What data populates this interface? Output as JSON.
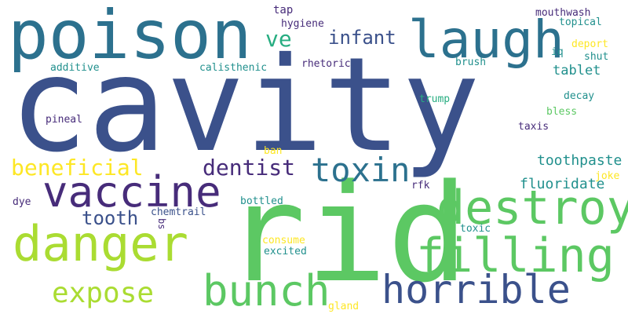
{
  "background": "#ffffff",
  "palette": {
    "dark_purple": "#472c7a",
    "indigo": "#3b518b",
    "steel_blue": "#2c718e",
    "teal": "#21908d",
    "green": "#27ad81",
    "lime": "#5cc863",
    "light_lime": "#aadc32",
    "yellow": "#fde725"
  },
  "words": [
    {
      "text": "cavity",
      "color": "#3b518b"
    },
    {
      "text": "rid",
      "color": "#5cc863"
    },
    {
      "text": "poison",
      "color": "#2c718e"
    },
    {
      "text": "laugh",
      "color": "#2c718e"
    },
    {
      "text": "vaccine",
      "color": "#472c7a"
    },
    {
      "text": "danger",
      "color": "#aadc32"
    },
    {
      "text": "destroy",
      "color": "#5cc863"
    },
    {
      "text": "filling",
      "color": "#5cc863"
    },
    {
      "text": "horrible",
      "color": "#3b518b"
    },
    {
      "text": "bunch",
      "color": "#5cc863"
    },
    {
      "text": "toxin",
      "color": "#2c718e"
    },
    {
      "text": "expose",
      "color": "#aadc32"
    },
    {
      "text": "beneficial",
      "color": "#fde725"
    },
    {
      "text": "dentist",
      "color": "#472c7a"
    },
    {
      "text": "infant",
      "color": "#3b518b"
    },
    {
      "text": "ve",
      "color": "#27ad81"
    },
    {
      "text": "tooth",
      "color": "#3b518b"
    },
    {
      "text": "toothpaste",
      "color": "#21908d"
    },
    {
      "text": "fluoridate",
      "color": "#21908d"
    },
    {
      "text": "tablet",
      "color": "#21908d"
    },
    {
      "text": "tap",
      "color": "#472c7a"
    },
    {
      "text": "hygiene",
      "color": "#472c7a"
    },
    {
      "text": "mouthwash",
      "color": "#472c7a"
    },
    {
      "text": "topical",
      "color": "#21908d"
    },
    {
      "text": "deport",
      "color": "#fde725"
    },
    {
      "text": "iq",
      "color": "#21908d"
    },
    {
      "text": "shut",
      "color": "#21908d"
    },
    {
      "text": "rhetoric",
      "color": "#472c7a"
    },
    {
      "text": "brush",
      "color": "#21908d"
    },
    {
      "text": "additive",
      "color": "#21908d"
    },
    {
      "text": "calisthenic",
      "color": "#21908d"
    },
    {
      "text": "decay",
      "color": "#21908d"
    },
    {
      "text": "trump",
      "color": "#27ad81"
    },
    {
      "text": "bless",
      "color": "#5cc863"
    },
    {
      "text": "pineal",
      "color": "#472c7a"
    },
    {
      "text": "taxis",
      "color": "#472c7a"
    },
    {
      "text": "ban",
      "color": "#fde725"
    },
    {
      "text": "joke",
      "color": "#fde725"
    },
    {
      "text": "rfk",
      "color": "#472c7a"
    },
    {
      "text": "dye",
      "color": "#472c7a"
    },
    {
      "text": "chemtrail",
      "color": "#3b518b"
    },
    {
      "text": "bottled",
      "color": "#21908d"
    },
    {
      "text": "bs",
      "color": "#472c7a"
    },
    {
      "text": "toxic",
      "color": "#21908d"
    },
    {
      "text": "consume",
      "color": "#fde725"
    },
    {
      "text": "excited",
      "color": "#21908d"
    },
    {
      "text": "gland",
      "color": "#fde725"
    }
  ]
}
